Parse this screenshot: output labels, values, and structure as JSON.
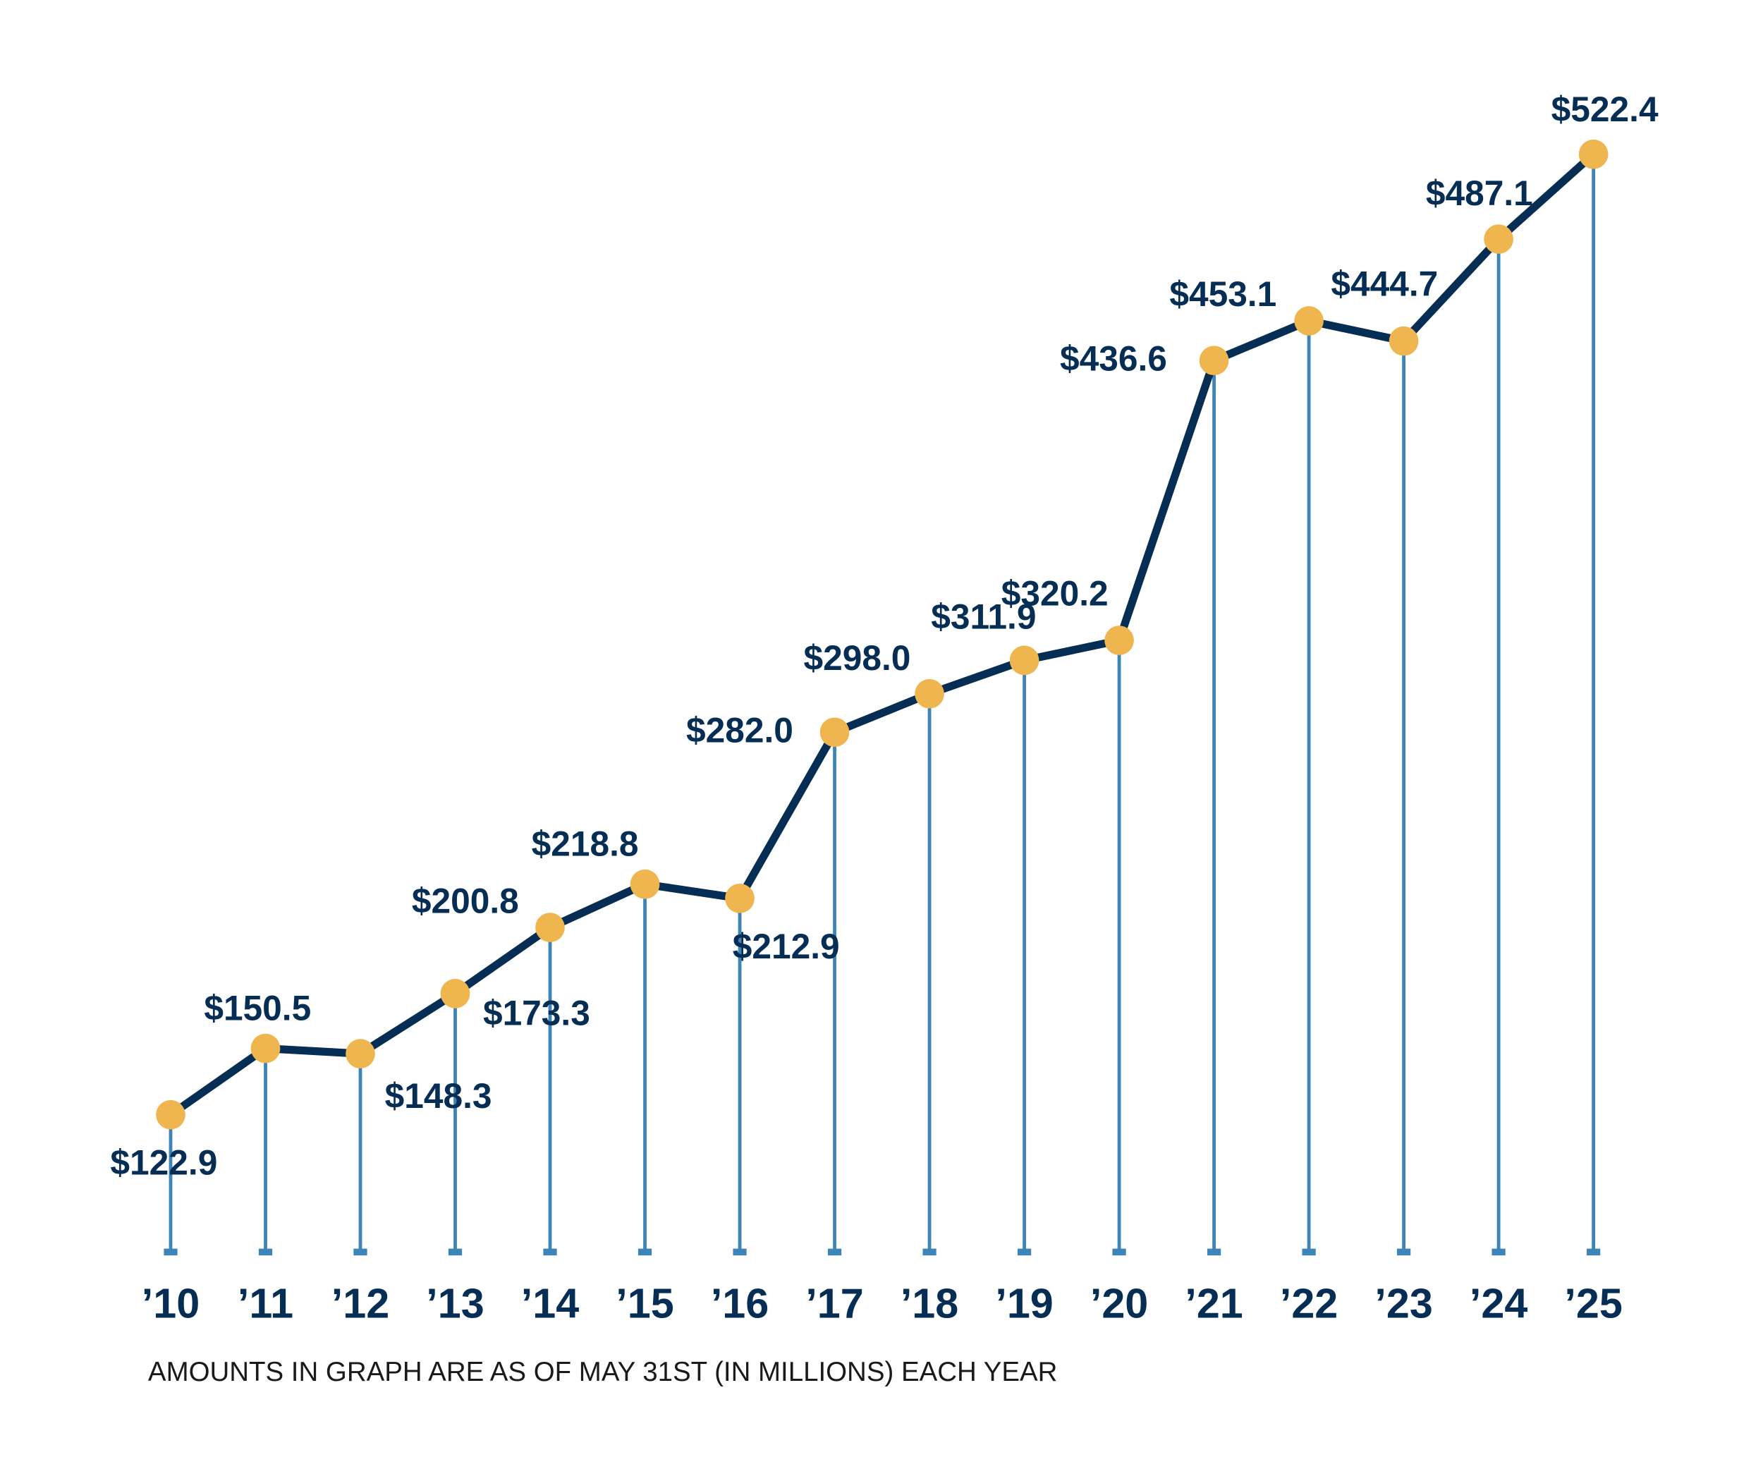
{
  "chart_data": {
    "type": "line",
    "categories": [
      "’10",
      "’11",
      "’12",
      "’13",
      "’14",
      "’15",
      "’16",
      "’17",
      "’18",
      "’19",
      "’20",
      "’21",
      "’22",
      "’23",
      "’24",
      "’25"
    ],
    "values": [
      122.9,
      150.5,
      148.3,
      173.3,
      200.8,
      218.8,
      212.9,
      282.0,
      298.0,
      311.9,
      320.2,
      436.6,
      453.1,
      444.7,
      487.1,
      522.4
    ],
    "data_labels": [
      "$122.9",
      "$150.5",
      "$148.3",
      "$173.3",
      "$200.8",
      "$218.8",
      "$212.9",
      "$282.0",
      "$298.0",
      "$311.9",
      "$320.2",
      "$436.6",
      "$453.1",
      "$444.7",
      "$487.1",
      "$522.4"
    ],
    "title": "",
    "xlabel": "",
    "ylabel": "",
    "footnote": "AMOUNTS IN GRAPH ARE AS OF MAY 31ST (IN MILLIONS) EACH YEAR",
    "grid": false,
    "legend": "none",
    "markers": "circle",
    "drop_lines": true,
    "colors": {
      "line": "#062d54",
      "marker": "#efb54e",
      "drop_line": "#3d84b8",
      "text": "#062d54"
    }
  }
}
